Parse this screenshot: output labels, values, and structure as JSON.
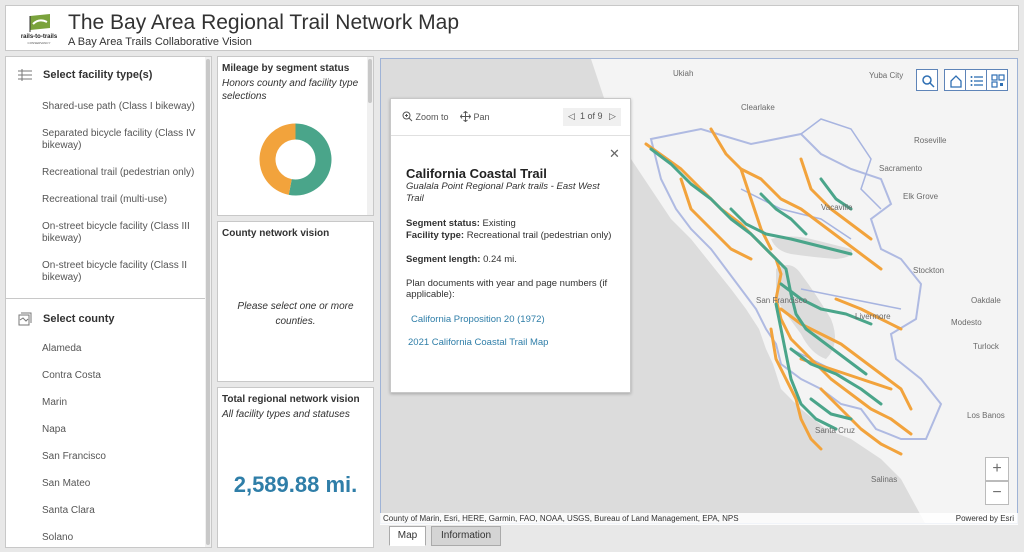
{
  "header": {
    "logo_text": "rails-to-trails",
    "logo_sub": "CONSERVANCY",
    "title": "The Bay Area Regional Trail Network Map",
    "subtitle": "A Bay Area Trails Collaborative Vision"
  },
  "facility_filter": {
    "label": "Select facility type(s)",
    "items": [
      "Shared-use path (Class I bikeway)",
      "Separated bicycle facility (Class IV bikeway)",
      "Recreational trail (pedestrian only)",
      "Recreational trail (multi-use)",
      "On-street bicycle facility (Class III bikeway)",
      "On-street bicycle facility (Class II bikeway)"
    ]
  },
  "county_filter": {
    "label": "Select county",
    "items": [
      "Alameda",
      "Contra Costa",
      "Marin",
      "Napa",
      "San Francisco",
      "San Mateo",
      "Santa Clara",
      "Solano"
    ]
  },
  "mileage_card": {
    "title": "Mileage by segment status",
    "subtitle": "Honors county and facility type selections",
    "donut": [
      {
        "label": "Existing",
        "fraction": 0.53,
        "color": "#4aa58a"
      },
      {
        "label": "Planned",
        "fraction": 0.47,
        "color": "#f2a33c"
      }
    ]
  },
  "county_card": {
    "title": "County network vision",
    "message": "Please select one or more counties."
  },
  "total_card": {
    "title": "Total regional network vision",
    "subtitle": "All facility types and statuses",
    "value": "2,589.88 mi."
  },
  "map": {
    "places": [
      "Ukiah",
      "Yuba City",
      "Clearlake",
      "Roseville",
      "Sacramento",
      "Elk Grove",
      "Vacaville",
      "Stockton",
      "San Francisco",
      "Oakdale",
      "Modesto",
      "Livermore",
      "Turlock",
      "Santa Cruz",
      "Los Banos",
      "Salinas"
    ],
    "attribution": "County of Marin, Esri, HERE, Garmin, FAO, NOAA, USGS, Bureau of Land Management, EPA, NPS",
    "powered_by": "Powered by Esri",
    "zoom_in": "+",
    "zoom_out": "−",
    "colors": {
      "existing": "#4aa58a",
      "planned": "#f2a33c",
      "land": "#f5f5f5",
      "water": "#d6d6d6"
    }
  },
  "popup": {
    "zoom_label": "Zoom to",
    "pan_label": "Pan",
    "pager": "1 of 9",
    "title": "California Coastal Trail",
    "subtitle": "Gualala Point Regional Park trails - East West Trail",
    "status_label": "Segment status:",
    "status_value": "Existing",
    "facility_label": "Facility type:",
    "facility_value": "Recreational trail (pedestrian only)",
    "length_label": "Segment length:",
    "length_value": "0.24 mi.",
    "plan_text": "Plan documents with year and page numbers (if applicable):",
    "links": [
      "California Proposition 20 (1972)",
      "2021 California Coastal Trail Map"
    ]
  },
  "tabs": [
    "Map",
    "Information"
  ]
}
